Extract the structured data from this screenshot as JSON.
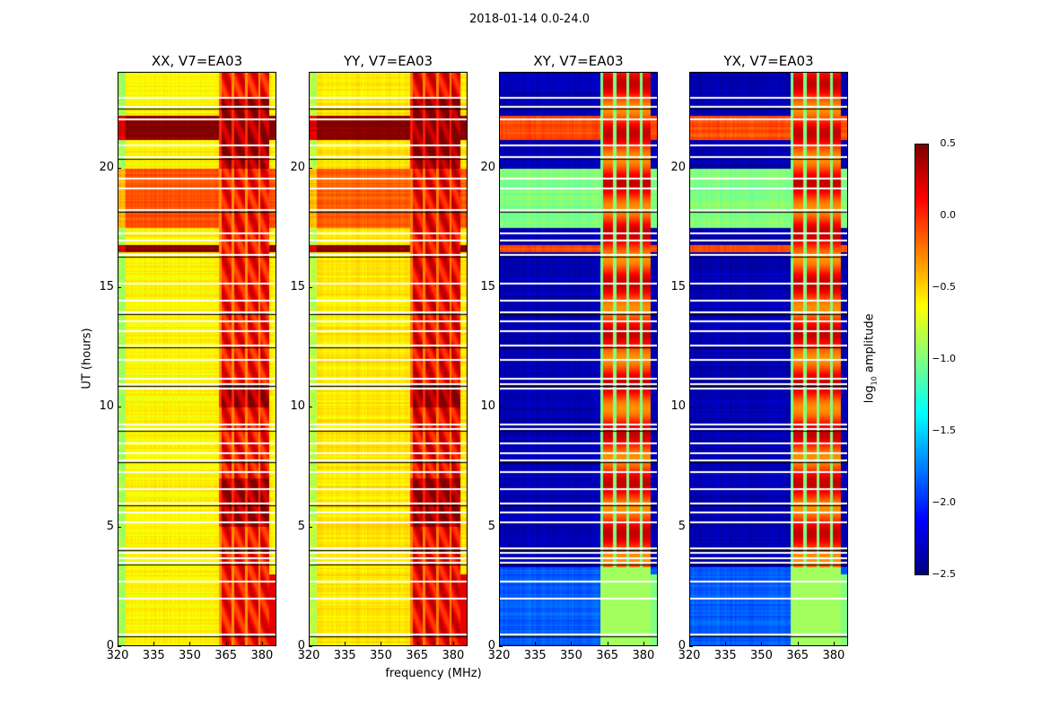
{
  "title": "2018-01-14 0.0-24.0",
  "chart_data": {
    "type": "heatmap",
    "colormap": "jet",
    "xlabel": "frequency (MHz)",
    "ylabel": "UT (hours)",
    "xlim": [
      320,
      386
    ],
    "ylim": [
      0,
      24
    ],
    "xticks": [
      "320",
      "335",
      "350",
      "365",
      "380"
    ],
    "xtick_values": [
      320,
      335,
      350,
      365,
      380
    ],
    "yticks": [
      "0",
      "5",
      "10",
      "15",
      "20"
    ],
    "ytick_values": [
      0,
      5,
      10,
      15,
      20
    ],
    "colorbar": {
      "label_main": "log",
      "label_sub": "10",
      "label_rest": " amplitude",
      "range": [
        -2.5,
        0.5
      ],
      "ticks": [
        "0.5",
        "0.0",
        "−0.5",
        "−1.0",
        "−1.5",
        "−2.0",
        "−2.5"
      ],
      "tick_values": [
        0.5,
        0.0,
        -0.5,
        -1.0,
        -1.5,
        -2.0,
        -2.5
      ]
    },
    "rfi_band_mhz": [
      362,
      386
    ],
    "flagged_hours": [
      0.5,
      2.0,
      2.7,
      3.5,
      3.7,
      3.9,
      4.1,
      5.2,
      5.6,
      6.0,
      6.6,
      7.3,
      7.8,
      8.1,
      8.5,
      9.1,
      9.3,
      10.8,
      11.0,
      11.2,
      12.0,
      12.6,
      13.2,
      13.6,
      14.0,
      14.5,
      15.2,
      16.4,
      17.0,
      17.3,
      18.3,
      19.2,
      19.6,
      20.5,
      21.0,
      22.1,
      22.6,
      23.0
    ],
    "panels": [
      {
        "title": "XX, V7=EA03",
        "base": -0.6,
        "rfi": 0.1,
        "early": -0.6,
        "mid_band": -0.1,
        "hot_band": 0.5
      },
      {
        "title": "YY, V7=EA03",
        "base": -0.55,
        "rfi": 0.15,
        "early": -0.55,
        "mid_band": -0.15,
        "hot_band": 0.5
      },
      {
        "title": "XY, V7=EA03",
        "base": -2.35,
        "rfi": 0.0,
        "early": -1.85,
        "mid_band": -1.0,
        "hot_band": -0.1
      },
      {
        "title": "YX, V7=EA03",
        "base": -2.35,
        "rfi": 0.0,
        "early": -1.85,
        "mid_band": -1.0,
        "hot_band": -0.1
      }
    ]
  }
}
